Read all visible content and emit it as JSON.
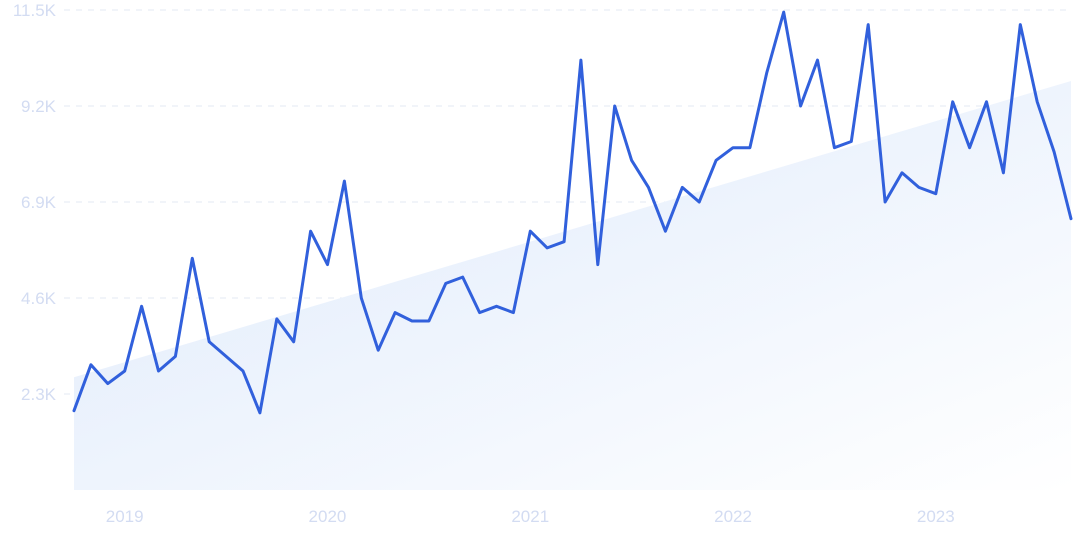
{
  "chart_data": {
    "type": "line",
    "title": "",
    "xlabel": "",
    "ylabel": "",
    "y_ticks": [
      "2.3K",
      "4.6K",
      "6.9K",
      "9.2K",
      "11.5K"
    ],
    "y_tick_values": [
      2300,
      4600,
      6900,
      9200,
      11500
    ],
    "ylim": [
      0,
      11500
    ],
    "x_tick_labels": [
      "2019",
      "2020",
      "2021",
      "2022",
      "2023"
    ],
    "x_tick_dates": [
      "2019-01",
      "2020-01",
      "2021-01",
      "2022-01",
      "2023-01"
    ],
    "xlim": [
      "2018-10",
      "2023-09"
    ],
    "grid": "horizontal dashed",
    "legend": "none",
    "colors": {
      "line": "#3160dc",
      "trend_fill_start": "#dde9fb",
      "trend_fill_end": "#ffffff",
      "tick_text": "#d3dcf2",
      "grid": "#e3e8f3"
    },
    "trend": {
      "x": [
        "2018-10",
        "2023-09"
      ],
      "y": [
        2700,
        9800
      ]
    },
    "series": [
      {
        "x": [
          "2018-10",
          "2018-11",
          "2018-12",
          "2019-01",
          "2019-02",
          "2019-03",
          "2019-04",
          "2019-05",
          "2019-06",
          "2019-07",
          "2019-08",
          "2019-09",
          "2019-10",
          "2019-11",
          "2019-12",
          "2020-01",
          "2020-02",
          "2020-03",
          "2020-04",
          "2020-05",
          "2020-06",
          "2020-07",
          "2020-08",
          "2020-09",
          "2020-10",
          "2020-11",
          "2020-12",
          "2021-01",
          "2021-02",
          "2021-03",
          "2021-04",
          "2021-05",
          "2021-06",
          "2021-07",
          "2021-08",
          "2021-09",
          "2021-10",
          "2021-11",
          "2021-12",
          "2022-01",
          "2022-02",
          "2022-03",
          "2022-04",
          "2022-05",
          "2022-06",
          "2022-07",
          "2022-08",
          "2022-09",
          "2022-10",
          "2022-11",
          "2022-12",
          "2023-01",
          "2023-02",
          "2023-03",
          "2023-04",
          "2023-05",
          "2023-06",
          "2023-07",
          "2023-08",
          "2023-09"
        ],
        "values": [
          1900,
          3000,
          2550,
          2850,
          4400,
          2850,
          3200,
          5550,
          3550,
          3200,
          2850,
          1850,
          4100,
          3550,
          6200,
          5400,
          7400,
          4600,
          3350,
          4250,
          4050,
          4050,
          4950,
          5100,
          4250,
          4400,
          4250,
          6200,
          5800,
          5950,
          10300,
          5400,
          9200,
          7900,
          7250,
          6200,
          7250,
          6900,
          7900,
          8200,
          8200,
          10000,
          11450,
          9200,
          10300,
          8200,
          8350,
          11150,
          6900,
          7600,
          7250,
          7100,
          9300,
          8200,
          9300,
          7600,
          11150,
          9300,
          8100,
          6500
        ]
      }
    ]
  }
}
